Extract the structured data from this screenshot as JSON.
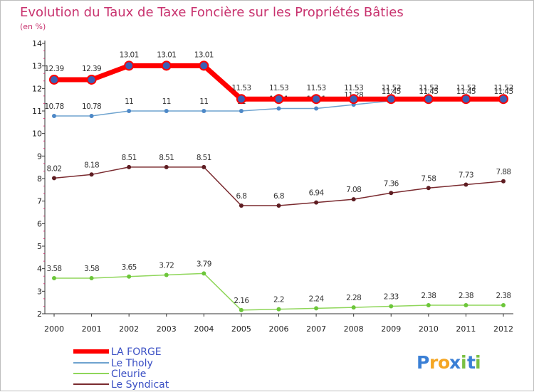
{
  "chart_data": {
    "type": "line",
    "title": "Evolution du Taux de Taxe Foncière sur les Propriétés Bâties",
    "subtitle": "(en %)",
    "x": [
      "2000",
      "2001",
      "2002",
      "2003",
      "2004",
      "2005",
      "2006",
      "2007",
      "2008",
      "2009",
      "2010",
      "2011",
      "2012"
    ],
    "ylim": [
      2,
      14
    ],
    "yticks": [
      2,
      3,
      4,
      5,
      6,
      7,
      8,
      9,
      10,
      11,
      12,
      13,
      14
    ],
    "grid": false,
    "legend_position": "bottom-left",
    "series": [
      {
        "name": "LA FORGE",
        "color": "#ff0000",
        "marker_color": "#3b5fb4",
        "values": [
          12.39,
          12.39,
          13.01,
          13.01,
          13.01,
          11.53,
          11.53,
          11.53,
          11.53,
          11.53,
          11.53,
          11.53,
          11.53
        ],
        "labels": [
          "12.39",
          "12.39",
          "13.01",
          "13.01",
          "13.01",
          "11.53",
          "11.53",
          "11.53",
          "11.53",
          "11.53",
          "11.53",
          "11.53",
          "11.53"
        ]
      },
      {
        "name": "Le Tholy",
        "color": "#6ea3cf",
        "marker_color": "#4d88c7",
        "values": [
          10.78,
          10.78,
          11,
          11,
          11,
          11,
          11.11,
          11.11,
          11.28,
          11.45,
          11.45,
          11.45,
          11.45
        ],
        "labels": [
          "10.78",
          "10.78",
          "11",
          "11",
          "11",
          "11",
          "11.11",
          "11.11",
          "11.28",
          "11.45",
          "11.45",
          "11.45",
          "11.45"
        ]
      },
      {
        "name": "Cleurie",
        "color": "#8fd65a",
        "marker_color": "#6cc63a",
        "values": [
          3.58,
          3.58,
          3.65,
          3.72,
          3.79,
          2.16,
          2.2,
          2.24,
          2.28,
          2.33,
          2.38,
          2.38,
          2.38
        ],
        "labels": [
          "3.58",
          "3.58",
          "3.65",
          "3.72",
          "3.79",
          "2.16",
          "2.2",
          "2.24",
          "2.28",
          "2.33",
          "2.38",
          "2.38",
          "2.38"
        ]
      },
      {
        "name": "Le Syndicat",
        "color": "#7a2a2f",
        "marker_color": "#5e1d22",
        "values": [
          8.02,
          8.18,
          8.51,
          8.51,
          8.51,
          6.8,
          6.8,
          6.94,
          7.08,
          7.36,
          7.58,
          7.73,
          7.88
        ],
        "labels": [
          "8.02",
          "8.18",
          "8.51",
          "8.51",
          "8.51",
          "6.8",
          "6.8",
          "6.94",
          "7.08",
          "7.36",
          "7.58",
          "7.73",
          "7.88"
        ]
      }
    ]
  },
  "brand": {
    "logo_text": "Proxiti",
    "logo_letters": [
      "P",
      "r",
      "o",
      "x",
      "i",
      "t",
      "i"
    ]
  },
  "colors": {
    "title": "#c8326e",
    "axis": "#333333",
    "legend_text": "#3a4fc4"
  }
}
